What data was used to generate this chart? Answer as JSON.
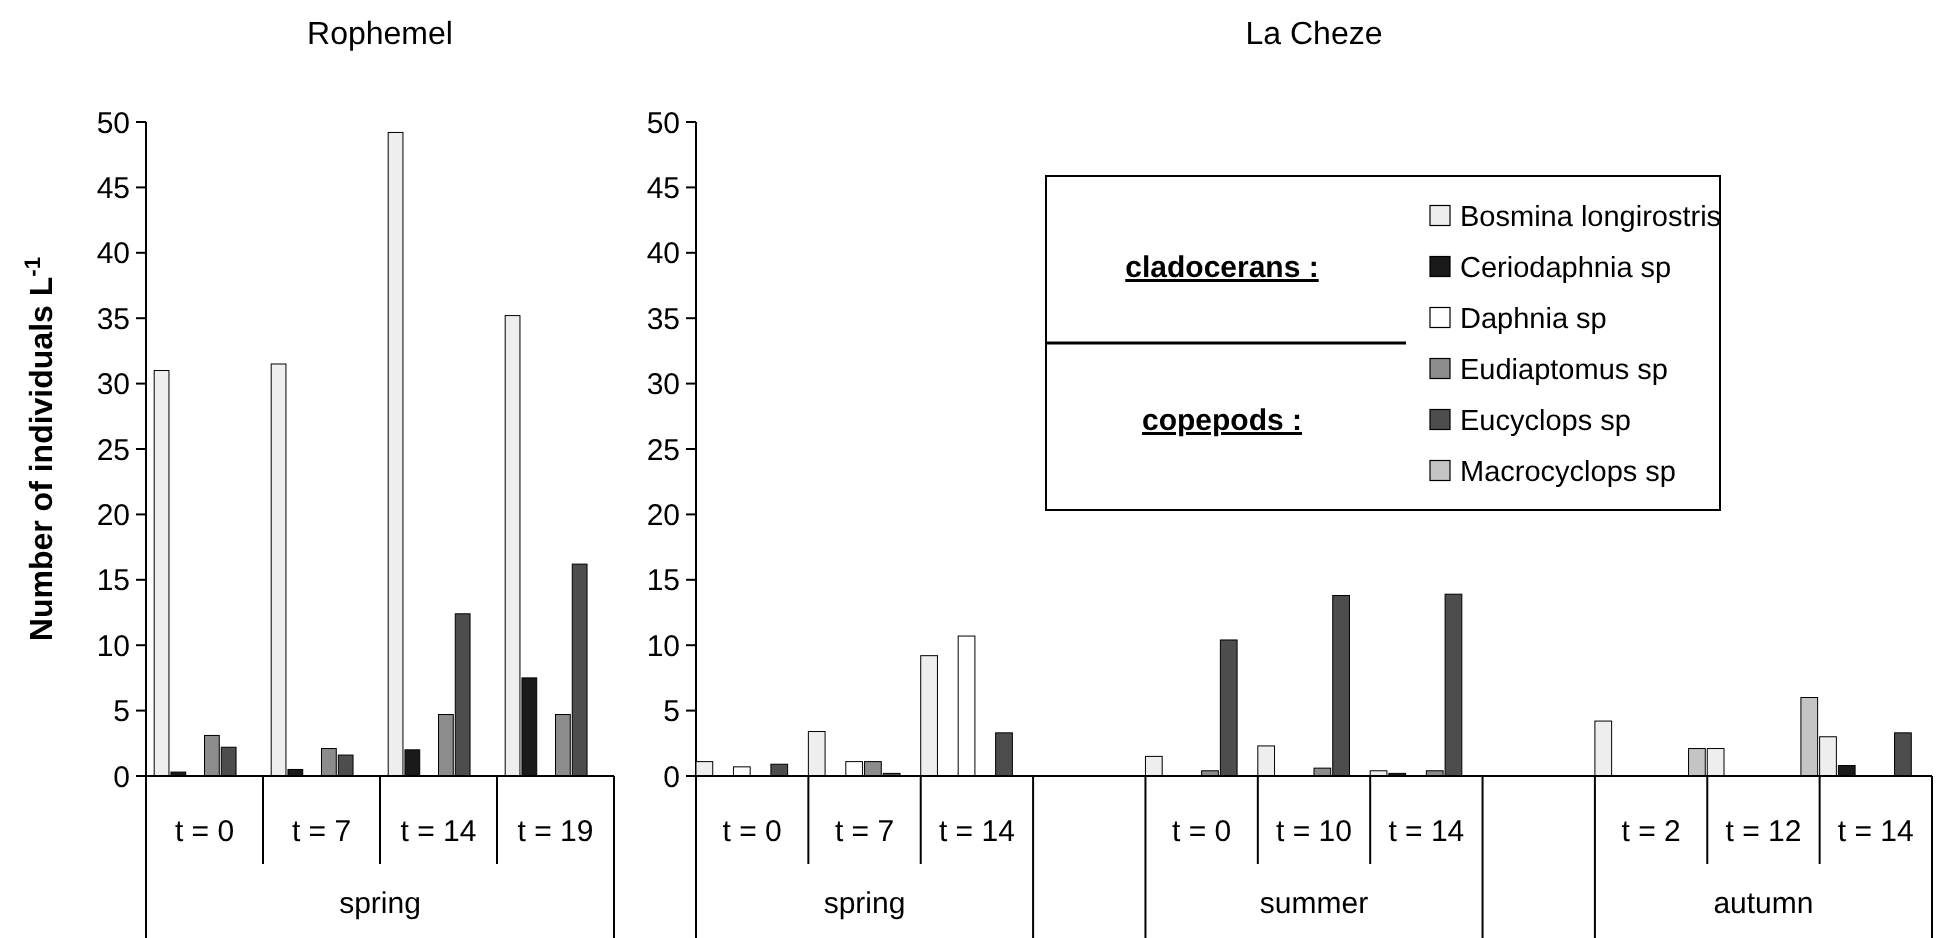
{
  "chart_data": [
    {
      "type": "bar",
      "title": "Rophemel",
      "ylabel": "Number of individuals L$^{-1}$",
      "categories": [
        "t = 0",
        "t = 7",
        "t = 14",
        "t = 19"
      ],
      "annotations": [
        "spring"
      ],
      "ylim": [
        0,
        50
      ],
      "yticks": [
        0,
        5,
        10,
        15,
        20,
        25,
        30,
        35,
        40,
        45,
        50
      ],
      "legend": false,
      "series": [
        {
          "color": "#eeeeee",
          "values": [
            31,
            31.5,
            49.2,
            35.2
          ]
        },
        {
          "color": "#1a1a1a",
          "values": [
            0.3,
            0.5,
            2.0,
            7.5
          ]
        },
        {
          "color": "#ffffff",
          "values": [
            0,
            0,
            0,
            0
          ]
        },
        {
          "color": "#8c8c8c",
          "values": [
            3.1,
            2.1,
            4.7,
            4.7
          ]
        },
        {
          "color": "#4d4d4d",
          "values": [
            2.2,
            1.6,
            12.4,
            16.2
          ]
        },
        {
          "color": "#c4c4c4",
          "values": [
            0,
            0,
            0,
            0
          ]
        }
      ]
    },
    {
      "type": "bar",
      "title": "La Cheze",
      "categories": [
        "t = 0",
        "t = 7",
        "t = 14",
        null,
        "t = 0",
        "t = 10",
        "t = 14",
        null,
        "t = 2",
        "t = 12",
        "t = 14"
      ],
      "annotations": [
        "spring",
        "summer",
        "autumn",
        "cladocerans :",
        "copepods :"
      ],
      "ylim": [
        0,
        50
      ],
      "yticks": [
        0,
        5,
        10,
        15,
        20,
        25,
        30,
        35,
        40,
        45,
        50
      ],
      "legend": "top right",
      "series": [
        {
          "name": "Bosmina longirostris",
          "color": "#eeeeee",
          "values": [
            1.1,
            3.4,
            9.2,
            null,
            1.5,
            2.3,
            0.4,
            null,
            4.2,
            2.1,
            3.0
          ]
        },
        {
          "name": "Ceriodaphnia sp",
          "color": "#1a1a1a",
          "values": [
            0,
            0,
            0,
            null,
            0,
            0,
            0.2,
            null,
            0,
            0,
            0.8
          ]
        },
        {
          "name": "Daphnia sp",
          "color": "#ffffff",
          "values": [
            0.7,
            1.1,
            10.7,
            null,
            0,
            0,
            0,
            null,
            0,
            0,
            0
          ]
        },
        {
          "name": "Eudiaptomus sp",
          "color": "#8c8c8c",
          "values": [
            0,
            1.1,
            0,
            null,
            0.4,
            0.6,
            0.4,
            null,
            0,
            0,
            0
          ]
        },
        {
          "name": "Eucyclops sp",
          "color": "#4d4d4d",
          "values": [
            0.9,
            0.2,
            3.3,
            null,
            10.4,
            13.8,
            13.9,
            null,
            0,
            0,
            3.3
          ]
        },
        {
          "name": "Macrocyclops sp",
          "color": "#c4c4c4",
          "values": [
            0,
            0,
            0,
            null,
            0,
            0,
            0,
            null,
            2.1,
            6.0,
            0
          ]
        }
      ]
    }
  ]
}
